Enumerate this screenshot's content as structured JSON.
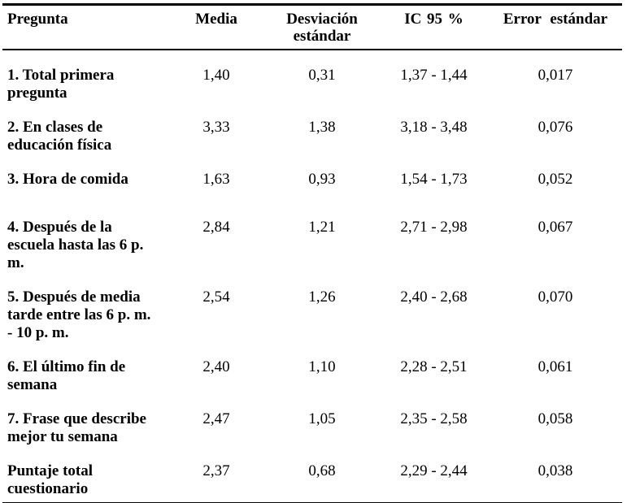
{
  "colors": {
    "background": "#ffffff",
    "text": "#000000",
    "border": "#000000"
  },
  "table": {
    "columns": [
      "Pregunta",
      "Media",
      "Desviación estándar",
      "IC 95 %",
      "Error estándar"
    ],
    "rows": [
      [
        "1. Total primera pregunta",
        "1,40",
        "0,31",
        "1,37 - 1,44",
        "0,017"
      ],
      [
        "2. En clases de educación física",
        "3,33",
        "1,38",
        "3,18 - 3,48",
        "0,076"
      ],
      [
        "3. Hora de comida",
        "1,63",
        "0,93",
        "1,54 - 1,73",
        "0,052"
      ],
      [
        "4. Después de la escuela hasta las 6 p. m.",
        "2,84",
        "1,21",
        "2,71 - 2,98",
        "0,067"
      ],
      [
        "5. Después de media tarde entre las 6 p. m. - 10 p. m.",
        "2,54",
        "1,26",
        "2,40 - 2,68",
        "0,070"
      ],
      [
        "6. El último fin de semana",
        "2,40",
        "1,10",
        "2,28 - 2,51",
        "0,061"
      ],
      [
        "7. Frase que describe mejor tu semana",
        "2,47",
        "1,05",
        "2,35 - 2,58",
        "0,058"
      ],
      [
        "Puntaje total cuestionario",
        "2,37",
        "0,68",
        "2,29 - 2,44",
        "0,038"
      ]
    ]
  }
}
